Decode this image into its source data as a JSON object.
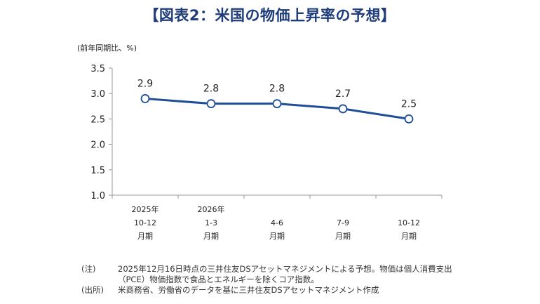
{
  "title": "【図表2：米国の物価上昇率の予想】",
  "chart_data": {
    "type": "line",
    "unit_label": "(前年同期比、%)",
    "categories": [
      [
        "2025年",
        "10-12",
        "月期"
      ],
      [
        "2026年",
        "1-3",
        "月期"
      ],
      [
        "",
        "4-6",
        "月期"
      ],
      [
        "",
        "7-9",
        "月期"
      ],
      [
        "",
        "10-12",
        "月期"
      ]
    ],
    "values": [
      2.9,
      2.8,
      2.8,
      2.7,
      2.5
    ],
    "value_labels": [
      "2.9",
      "2.8",
      "2.8",
      "2.7",
      "2.5"
    ],
    "ylim": [
      1.0,
      3.5
    ],
    "yticks": [
      "1.0",
      "1.5",
      "2.0",
      "2.5",
      "3.0",
      "3.5"
    ],
    "line_color": "#1f4e99",
    "marker_fill": "#ffffff"
  },
  "notes": [
    {
      "label": "(注)",
      "text": "2025年12月16日時点の三井住友DSアセットマネジメントによる予想。物価は個人消費支出（PCE）物価指数で食品とエネルギーを除くコア指数。"
    },
    {
      "label": "(出所)",
      "text": "米商務省、労働省のデータを基に三井住友DSアセットマネジメント作成"
    }
  ]
}
